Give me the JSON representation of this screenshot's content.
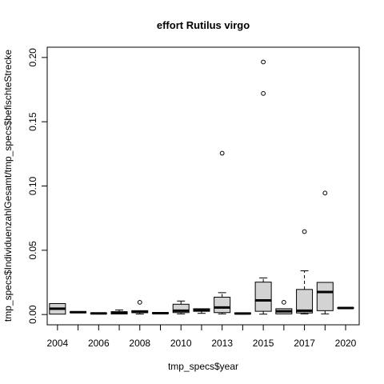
{
  "chart_data": {
    "type": "boxplot",
    "title": "effort Rutilus virgo",
    "xlabel": "tmp_specs$year",
    "ylabel": "tmp_specs$IndividuenzahlGesamt/tmp_specs$befischteStrecke",
    "ylim": [
      0,
      0.2
    ],
    "y_ticks": [
      "0.00",
      "0.05",
      "0.10",
      "0.15",
      "0.20"
    ],
    "x_tick_labels": [
      "2004",
      "2006",
      "2008",
      "2010",
      "2013",
      "2015",
      "2017",
      "2020"
    ],
    "box_fill": "#d3d3d3",
    "grid": false,
    "groups": [
      {
        "year": "2004",
        "min": 0.0003,
        "q1": 0.0003,
        "median": 0.0045,
        "q3": 0.0085,
        "max": 0.0085,
        "outliers": []
      },
      {
        "year": "2005",
        "min": 0.0014,
        "q1": 0.0014,
        "median": 0.0018,
        "q3": 0.0022,
        "max": 0.0022,
        "outliers": []
      },
      {
        "year": "2006",
        "min": 0.0006,
        "q1": 0.0006,
        "median": 0.0009,
        "q3": 0.0012,
        "max": 0.0012,
        "outliers": []
      },
      {
        "year": "2007",
        "min": 0.0004,
        "q1": 0.0004,
        "median": 0.0015,
        "q3": 0.0022,
        "max": 0.0035,
        "outliers": []
      },
      {
        "year": "2008",
        "min": 0.0004,
        "q1": 0.0014,
        "median": 0.0022,
        "q3": 0.003,
        "max": 0.003,
        "outliers": [
          0.0095
        ]
      },
      {
        "year": "2009",
        "min": 0.0005,
        "q1": 0.0008,
        "median": 0.001,
        "q3": 0.0014,
        "max": 0.0014,
        "outliers": []
      },
      {
        "year": "2010",
        "min": 0.0005,
        "q1": 0.0015,
        "median": 0.003,
        "q3": 0.008,
        "max": 0.0105,
        "outliers": []
      },
      {
        "year": "2012",
        "min": 0.0009,
        "q1": 0.0025,
        "median": 0.0032,
        "q3": 0.0045,
        "max": 0.0045,
        "outliers": []
      },
      {
        "year": "2013",
        "min": 0.0005,
        "q1": 0.0015,
        "median": 0.0055,
        "q3": 0.0135,
        "max": 0.017,
        "outliers": [
          0.1255
        ]
      },
      {
        "year": "2014",
        "min": 0.0003,
        "q1": 0.0005,
        "median": 0.0008,
        "q3": 0.0012,
        "max": 0.0012,
        "outliers": []
      },
      {
        "year": "2015",
        "min": 0.0003,
        "q1": 0.0025,
        "median": 0.011,
        "q3": 0.0252,
        "max": 0.0285,
        "outliers": [
          0.1965,
          0.172
        ]
      },
      {
        "year": "2016",
        "min": 0.0005,
        "q1": 0.0005,
        "median": 0.0025,
        "q3": 0.0045,
        "max": 0.0045,
        "outliers": [
          0.0095
        ]
      },
      {
        "year": "2017",
        "min": 0.0005,
        "q1": 0.0012,
        "median": 0.003,
        "q3": 0.0195,
        "max": 0.034,
        "outliers": [
          0.0645
        ]
      },
      {
        "year": "2018",
        "min": 0.0005,
        "q1": 0.003,
        "median": 0.0175,
        "q3": 0.025,
        "max": 0.025,
        "outliers": [
          0.0945
        ]
      },
      {
        "year": "2020",
        "min": 0.0046,
        "q1": 0.0048,
        "median": 0.0051,
        "q3": 0.0054,
        "max": 0.0056,
        "outliers": []
      }
    ]
  }
}
